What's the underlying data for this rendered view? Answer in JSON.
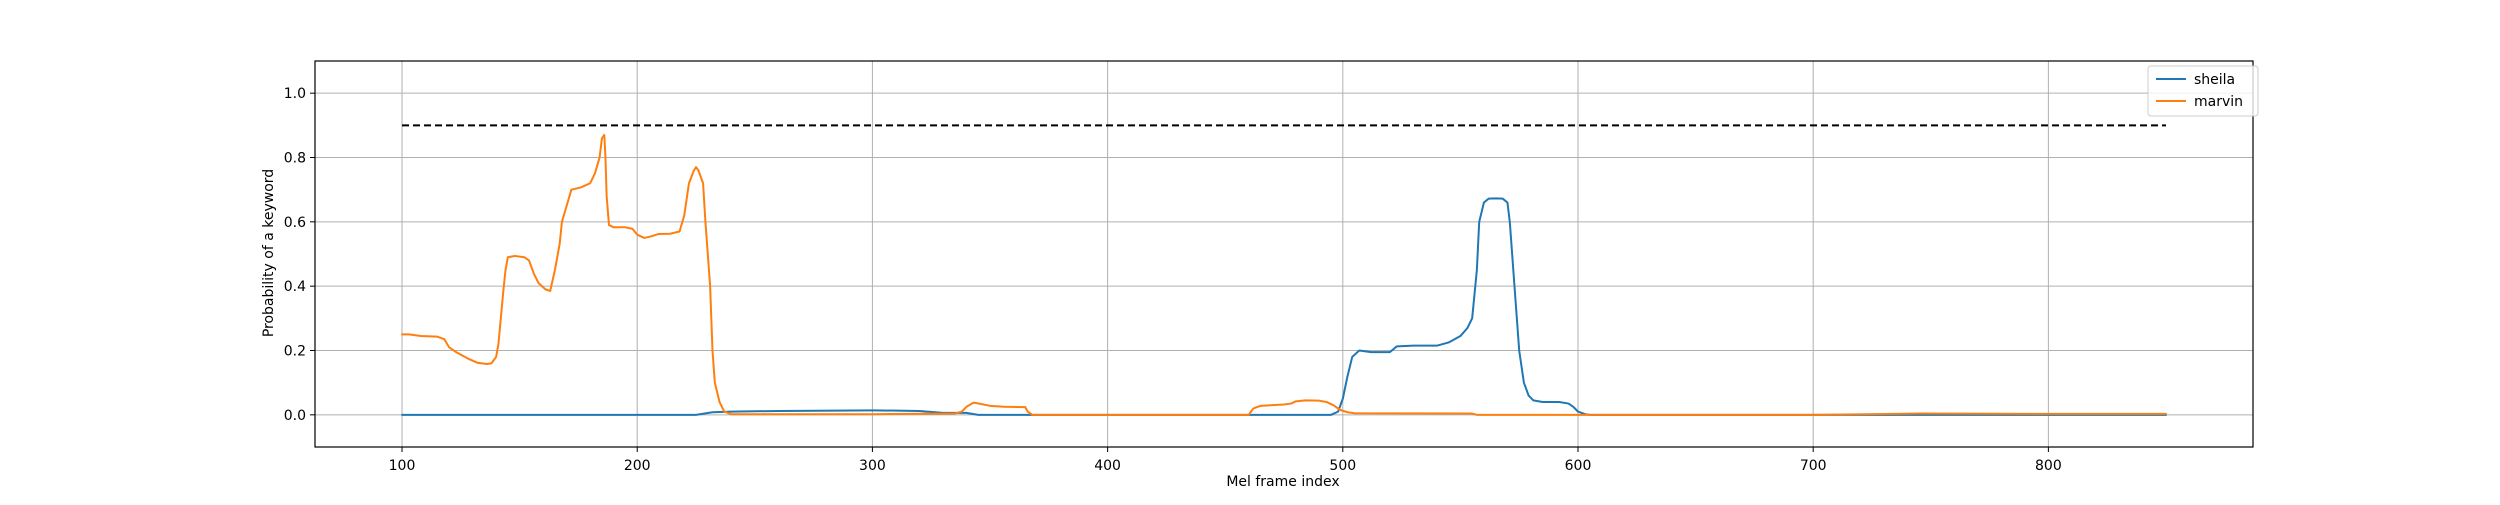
{
  "chart_data": {
    "type": "line",
    "title": "",
    "xlabel": "Mel frame index",
    "ylabel": "Probability of a keyword",
    "xlim": [
      63,
      887
    ],
    "ylim": [
      -0.1,
      1.1
    ],
    "xticks": [
      100,
      200,
      300,
      400,
      500,
      600,
      700,
      800
    ],
    "yticks": [
      0.0,
      0.2,
      0.4,
      0.6,
      0.8,
      1.0
    ],
    "xtick_labels": [
      "100",
      "200",
      "300",
      "400",
      "500",
      "600",
      "700",
      "800"
    ],
    "ytick_labels": [
      "0.0",
      "0.2",
      "0.4",
      "0.6",
      "0.8",
      "1.0"
    ],
    "grid": true,
    "legend_position": "top-right",
    "threshold": {
      "y": 0.9,
      "x_start": 100,
      "x_end": 850,
      "color": "#000000",
      "style": "dashed"
    },
    "series": [
      {
        "name": "sheila",
        "color": "#1f77b4",
        "points": [
          [
            100,
            0.0
          ],
          [
            225,
            0.0
          ],
          [
            232,
            0.008
          ],
          [
            240,
            0.01
          ],
          [
            260,
            0.012
          ],
          [
            300,
            0.014
          ],
          [
            320,
            0.012
          ],
          [
            330,
            0.006
          ],
          [
            340,
            0.006
          ],
          [
            345,
            0.0
          ],
          [
            495,
            0.0
          ],
          [
            498,
            0.01
          ],
          [
            500,
            0.05
          ],
          [
            502,
            0.12
          ],
          [
            504,
            0.18
          ],
          [
            507,
            0.2
          ],
          [
            512,
            0.195
          ],
          [
            520,
            0.195
          ],
          [
            523,
            0.213
          ],
          [
            530,
            0.215
          ],
          [
            540,
            0.215
          ],
          [
            545,
            0.225
          ],
          [
            550,
            0.245
          ],
          [
            553,
            0.27
          ],
          [
            555,
            0.3
          ],
          [
            557,
            0.45
          ],
          [
            558,
            0.6
          ],
          [
            560,
            0.66
          ],
          [
            562,
            0.672
          ],
          [
            565,
            0.673
          ],
          [
            568,
            0.672
          ],
          [
            570,
            0.66
          ],
          [
            571,
            0.6
          ],
          [
            573,
            0.4
          ],
          [
            575,
            0.2
          ],
          [
            577,
            0.1
          ],
          [
            579,
            0.06
          ],
          [
            581,
            0.045
          ],
          [
            585,
            0.04
          ],
          [
            592,
            0.04
          ],
          [
            596,
            0.035
          ],
          [
            598,
            0.025
          ],
          [
            600,
            0.01
          ],
          [
            603,
            0.002
          ],
          [
            605,
            0.0
          ],
          [
            850,
            0.0
          ]
        ]
      },
      {
        "name": "marvin",
        "color": "#ff7f0e",
        "points": [
          [
            100,
            0.25
          ],
          [
            103,
            0.25
          ],
          [
            108,
            0.245
          ],
          [
            115,
            0.243
          ],
          [
            118,
            0.235
          ],
          [
            120,
            0.21
          ],
          [
            123,
            0.195
          ],
          [
            128,
            0.175
          ],
          [
            132,
            0.162
          ],
          [
            136,
            0.158
          ],
          [
            138,
            0.16
          ],
          [
            140,
            0.18
          ],
          [
            141,
            0.22
          ],
          [
            142,
            0.3
          ],
          [
            143,
            0.38
          ],
          [
            144,
            0.45
          ],
          [
            145,
            0.49
          ],
          [
            148,
            0.494
          ],
          [
            152,
            0.49
          ],
          [
            154,
            0.48
          ],
          [
            156,
            0.44
          ],
          [
            158,
            0.41
          ],
          [
            161,
            0.39
          ],
          [
            163,
            0.385
          ],
          [
            165,
            0.45
          ],
          [
            167,
            0.53
          ],
          [
            168,
            0.6
          ],
          [
            170,
            0.65
          ],
          [
            172,
            0.7
          ],
          [
            176,
            0.707
          ],
          [
            180,
            0.72
          ],
          [
            182,
            0.75
          ],
          [
            184,
            0.8
          ],
          [
            185,
            0.86
          ],
          [
            186,
            0.87
          ],
          [
            186.5,
            0.8
          ],
          [
            187,
            0.68
          ],
          [
            188,
            0.59
          ],
          [
            190,
            0.583
          ],
          [
            195,
            0.583
          ],
          [
            198,
            0.578
          ],
          [
            200,
            0.56
          ],
          [
            203,
            0.55
          ],
          [
            206,
            0.555
          ],
          [
            209,
            0.562
          ],
          [
            214,
            0.563
          ],
          [
            218,
            0.57
          ],
          [
            220,
            0.62
          ],
          [
            222,
            0.72
          ],
          [
            224,
            0.758
          ],
          [
            225,
            0.77
          ],
          [
            226,
            0.76
          ],
          [
            228,
            0.72
          ],
          [
            229,
            0.6
          ],
          [
            231,
            0.4
          ],
          [
            232,
            0.2
          ],
          [
            233,
            0.1
          ],
          [
            235,
            0.04
          ],
          [
            237,
            0.01
          ],
          [
            240,
            0.002
          ],
          [
            260,
            0.002
          ],
          [
            300,
            0.002
          ],
          [
            335,
            0.004
          ],
          [
            338,
            0.01
          ],
          [
            340,
            0.025
          ],
          [
            343,
            0.038
          ],
          [
            346,
            0.034
          ],
          [
            350,
            0.028
          ],
          [
            356,
            0.025
          ],
          [
            365,
            0.024
          ],
          [
            366,
            0.01
          ],
          [
            368,
            0.0
          ],
          [
            460,
            0.0
          ],
          [
            462,
            0.02
          ],
          [
            465,
            0.028
          ],
          [
            475,
            0.032
          ],
          [
            478,
            0.035
          ],
          [
            480,
            0.042
          ],
          [
            484,
            0.045
          ],
          [
            490,
            0.044
          ],
          [
            493,
            0.04
          ],
          [
            496,
            0.03
          ],
          [
            499,
            0.015
          ],
          [
            502,
            0.008
          ],
          [
            505,
            0.005
          ],
          [
            555,
            0.004
          ],
          [
            557,
            0.0
          ],
          [
            600,
            0.0
          ],
          [
            700,
            0.0
          ],
          [
            745,
            0.004
          ],
          [
            800,
            0.003
          ],
          [
            850,
            0.003
          ]
        ]
      }
    ]
  }
}
